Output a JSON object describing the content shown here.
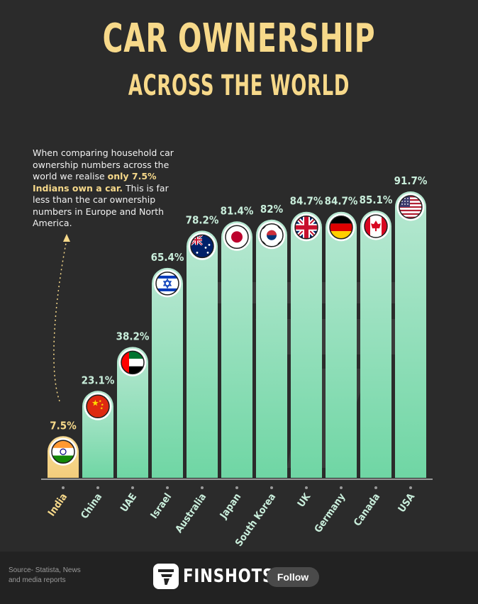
{
  "header": {
    "title_line1": "CAR OWNERSHIP",
    "title_line2": "ACROSS THE WORLD"
  },
  "annotation": {
    "text_before": "When comparing household car ownership numbers across the world we realise ",
    "highlight": "only 7.5% Indians own a car.",
    "text_after": " This is far less than the car ownership numbers in Europe and North America."
  },
  "colors": {
    "title": "#f7d98a",
    "highlight_bar": "#f7d98a",
    "bar_top": "#b3e6cf",
    "bar_bottom": "#6fd6a4",
    "value_label": "#c9eedb",
    "background": "#2b2b2b"
  },
  "chart_data": {
    "type": "bar",
    "categories": [
      "India",
      "China",
      "UAE",
      "Israel",
      "Australia",
      "Japan",
      "South Korea",
      "UK",
      "Germany",
      "Canada",
      "USA"
    ],
    "values": [
      7.5,
      23.1,
      38.2,
      65.4,
      78.2,
      81.4,
      82,
      84.7,
      84.7,
      85.1,
      91.7
    ],
    "labels": [
      "7.5%",
      "23.1%",
      "38.2%",
      "65.4%",
      "78.2%",
      "81.4%",
      "82%",
      "84.7%",
      "84.7%",
      "85.1%",
      "91.7%"
    ],
    "flag_icons": [
      "india-flag-icon",
      "china-flag-icon",
      "uae-flag-icon",
      "israel-flag-icon",
      "australia-flag-icon",
      "japan-flag-icon",
      "south-korea-flag-icon",
      "uk-flag-icon",
      "germany-flag-icon",
      "canada-flag-icon",
      "usa-flag-icon"
    ],
    "highlight_category": "India",
    "ylim": [
      0,
      100
    ],
    "grid": false,
    "title": "CAR OWNERSHIP ACROSS THE WORLD"
  },
  "footer": {
    "source": "Source- Statista, News and media reports",
    "brand": "FINSHOTS",
    "follow_label": "Follow"
  }
}
